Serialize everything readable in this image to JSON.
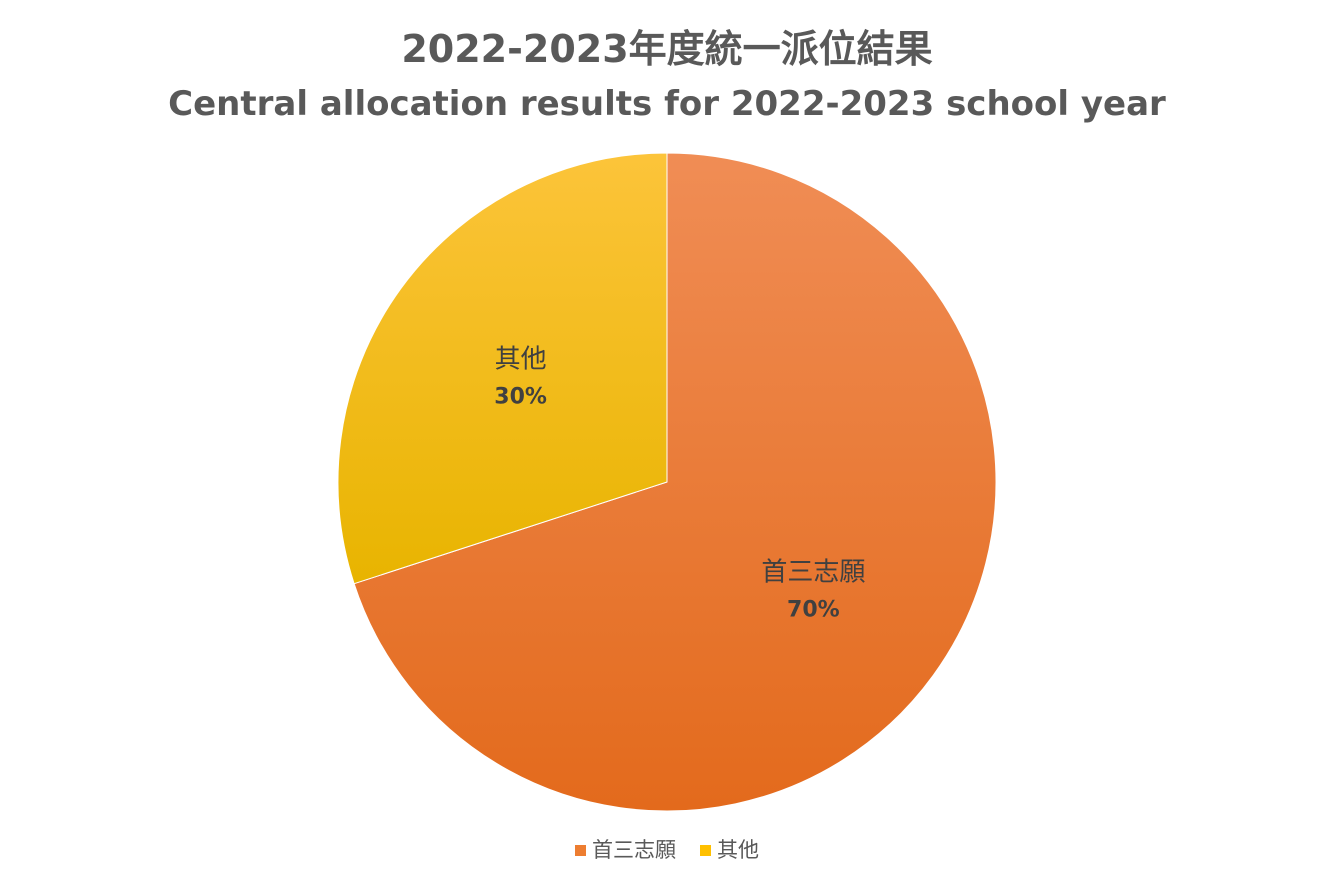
{
  "chart_data": {
    "type": "pie",
    "title": "2022-2023年度統一派位結果",
    "subtitle": "Central allocation results for 2022-2023 school year",
    "start_angle_deg": 0,
    "direction": "clockwise",
    "legend_position": "bottom",
    "slices": [
      {
        "label": "首三志願",
        "value": 70,
        "display": "70%",
        "color": "#ED7D31",
        "color_light": "#F08D55",
        "color_dark": "#E36A1C"
      },
      {
        "label": "其他",
        "value": 30,
        "display": "30%",
        "color": "#FFC000",
        "color_light": "#FCC43A",
        "color_dark": "#E8B400"
      }
    ]
  }
}
